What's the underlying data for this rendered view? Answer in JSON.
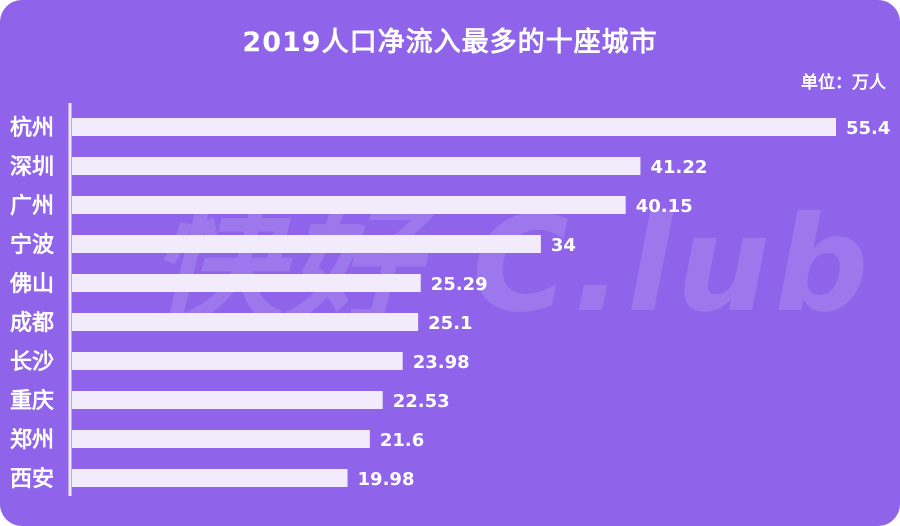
{
  "chart_data": {
    "type": "bar",
    "orientation": "horizontal",
    "title": "2019人口净流入最多的十座城市",
    "unit_label": "单位：万人",
    "categories": [
      "杭州",
      "深圳",
      "广州",
      "宁波",
      "佛山",
      "成都",
      "长沙",
      "重庆",
      "郑州",
      "西安"
    ],
    "values": [
      55.4,
      41.22,
      40.15,
      34,
      25.29,
      25.1,
      23.98,
      22.53,
      21.6,
      19.98
    ],
    "value_labels": [
      "55.4",
      "41.22",
      "40.15",
      "34",
      "25.29",
      "25.1",
      "23.98",
      "22.53",
      "21.6",
      "19.98"
    ],
    "xlim": [
      0,
      55.4
    ],
    "grid": false,
    "legend": "none"
  },
  "watermark": "快好 C.lub",
  "colors": {
    "background": "#8f63ea",
    "bar": "#f1ebfb",
    "axis": "#efe8fb",
    "text": "#ffffff"
  }
}
